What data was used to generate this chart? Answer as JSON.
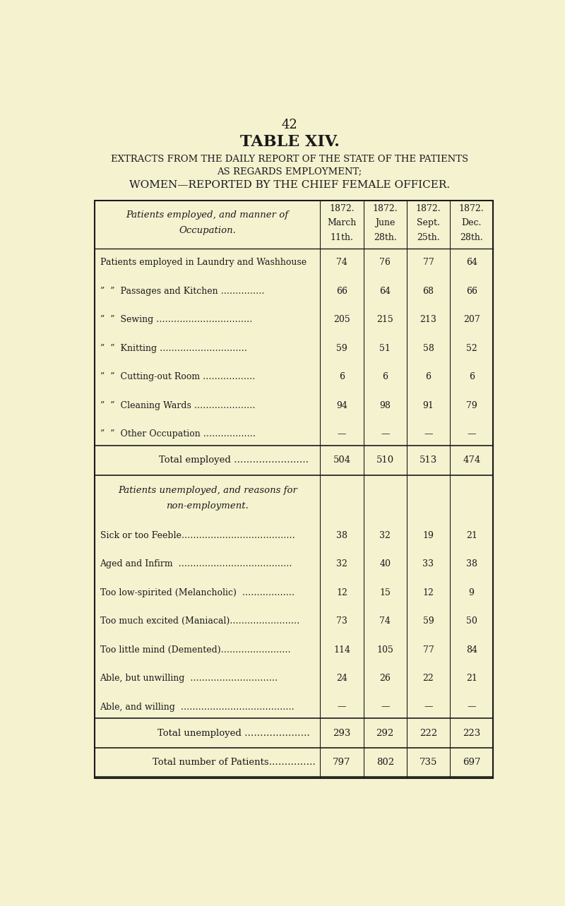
{
  "page_number": "42",
  "title1": "TABLE XIV.",
  "title2": "EXTRACTS FROM THE DAILY REPORT OF THE STATE OF THE PATIENTS",
  "title3": "AS REGARDS EMPLOYMENT;",
  "title4": "WOMEN—REPORTED BY THE CHIEF FEMALE OFFICER.",
  "bg_color": "#f5f2d0",
  "text_color": "#1a1a1a",
  "col_headers_line1": [
    "1872.",
    "1872.",
    "1872.",
    "1872."
  ],
  "col_headers_line2": [
    "March",
    "June",
    "Sept.",
    "Dec."
  ],
  "col_headers_line3": [
    "11th.",
    "28th.",
    "25th.",
    "28th."
  ],
  "employed_rows": [
    [
      "Patients employed in Laundry and Washhouse",
      "74",
      "76",
      "77",
      "64"
    ],
    [
      "”  ”  Passages and Kitchen ……………",
      "66",
      "64",
      "68",
      "66"
    ],
    [
      "”  ”  Sewing ……………………………",
      "205",
      "215",
      "213",
      "207"
    ],
    [
      "”  ”  Knitting …………………………",
      "59",
      "51",
      "58",
      "52"
    ],
    [
      "”  ”  Cutting-out Room ………………",
      "6",
      "6",
      "6",
      "6"
    ],
    [
      "”  ”  Cleaning Wards …………………",
      "94",
      "98",
      "91",
      "79"
    ],
    [
      "”  ”  Other Occupation ………………",
      "—",
      "—",
      "—",
      "—"
    ]
  ],
  "total_employed": [
    "Total employed ……………………",
    "504",
    "510",
    "513",
    "474"
  ],
  "unemployed_rows": [
    [
      "Sick or too Feeble…………………………………",
      "38",
      "32",
      "19",
      "21"
    ],
    [
      "Aged and Infirm  …………………………………",
      "32",
      "40",
      "33",
      "38"
    ],
    [
      "Too low-spirited (Melancholic)  ………………",
      "12",
      "15",
      "12",
      "9"
    ],
    [
      "Too much excited (Maniacal)……………………",
      "73",
      "74",
      "59",
      "50"
    ],
    [
      "Too little mind (Demented)……………………",
      "114",
      "105",
      "77",
      "84"
    ],
    [
      "Able, but unwilling  …………………………",
      "24",
      "26",
      "22",
      "21"
    ],
    [
      "Able, and willing  …………………………………",
      "—",
      "—",
      "—",
      "—"
    ]
  ],
  "total_unemployed": [
    "Total unemployed …………………",
    "293",
    "292",
    "222",
    "223"
  ],
  "total_patients": [
    "Total number of Patients……………",
    "797",
    "802",
    "735",
    "697"
  ]
}
